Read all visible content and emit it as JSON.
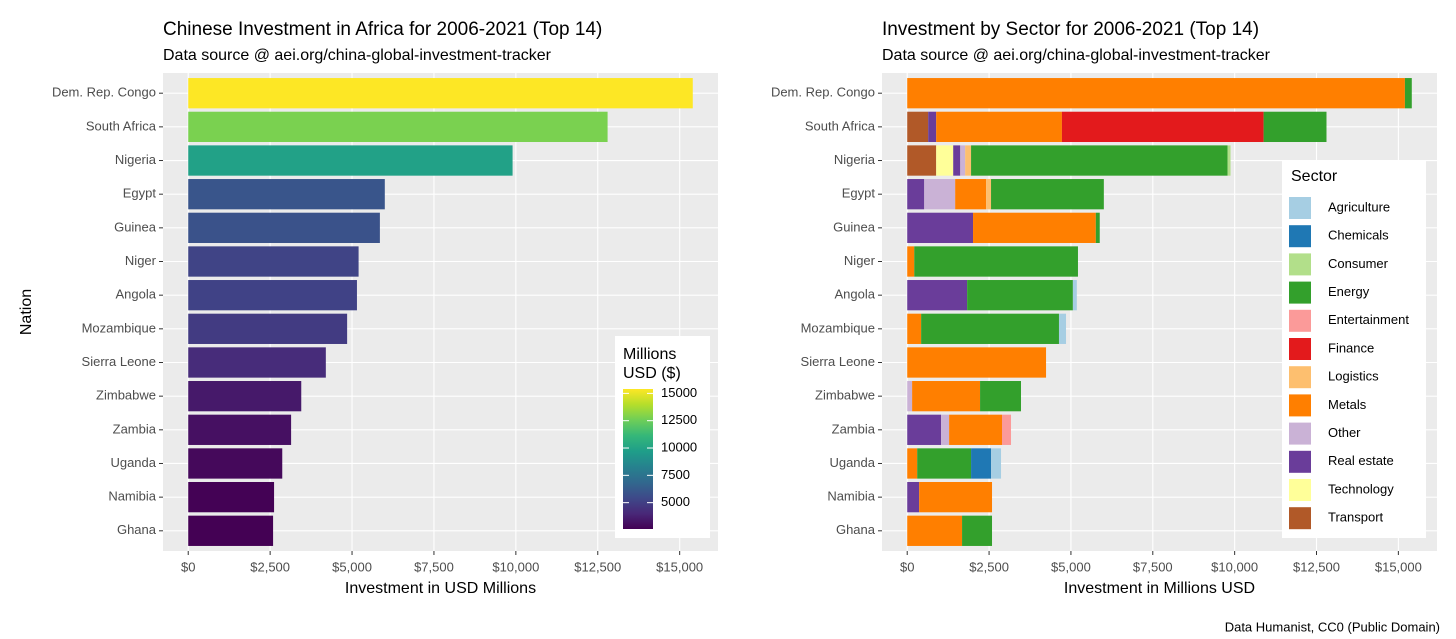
{
  "chart_data": [
    {
      "type": "bar",
      "orientation": "horizontal",
      "title": "Chinese Investment in Africa for 2006-2021 (Top 14)",
      "subtitle": "Data source @ aei.org/china-global-investment-tracker",
      "x_label": "Investment in USD Millions",
      "y_label": "Nation",
      "categories": [
        "Dem. Rep. Congo",
        "South Africa",
        "Nigeria",
        "Egypt",
        "Guinea",
        "Niger",
        "Angola",
        "Mozambique",
        "Sierra Leone",
        "Zimbabwe",
        "Zambia",
        "Uganda",
        "Namibia",
        "Ghana"
      ],
      "values": [
        15400,
        12800,
        9900,
        6000,
        5850,
        5200,
        5150,
        4850,
        4200,
        3450,
        3140,
        2870,
        2620,
        2590
      ],
      "colormap": [
        "#440154",
        "#482878",
        "#3e4989",
        "#31688e",
        "#26828e",
        "#1f9e89",
        "#35b779",
        "#6ece58",
        "#b5de2b",
        "#fde725"
      ],
      "legend_title": [
        "Millions",
        "USD ($)"
      ],
      "legend_ticks": [
        5000,
        7500,
        10000,
        12500,
        15000
      ],
      "xlim": [
        -770,
        16170
      ],
      "xticks": [
        {
          "value": 0,
          "label": "$0"
        },
        {
          "value": 2500,
          "label": "$2,500"
        },
        {
          "value": 5000,
          "label": "$5,000"
        },
        {
          "value": 7500,
          "label": "$7,500"
        },
        {
          "value": 10000,
          "label": "$10,000"
        },
        {
          "value": 12500,
          "label": "$12,500"
        },
        {
          "value": 15000,
          "label": "$15,000"
        }
      ],
      "grid": true
    },
    {
      "type": "stacked_bar",
      "orientation": "horizontal",
      "title": "Investment by Sector for 2006-2021 (Top 14)",
      "subtitle": "Data source @ aei.org/china-global-investment-tracker",
      "x_label": "Investment in Millions USD",
      "caption": "Data Humanist, CC0 (Public Domain)",
      "legend_title": "Sector",
      "categories": [
        "Dem. Rep. Congo",
        "South Africa",
        "Nigeria",
        "Egypt",
        "Guinea",
        "Niger",
        "Angola",
        "Mozambique",
        "Sierra Leone",
        "Zimbabwe",
        "Zambia",
        "Uganda",
        "Namibia",
        "Ghana"
      ],
      "series": [
        {
          "name": "Agriculture",
          "color": "#a6cee3",
          "values": [
            0,
            0,
            0,
            0,
            0,
            0,
            120,
            215,
            0,
            0,
            0,
            305,
            0,
            0
          ]
        },
        {
          "name": "Chemicals",
          "color": "#1f78b4",
          "values": [
            0,
            0,
            0,
            0,
            0,
            0,
            0,
            0,
            0,
            0,
            0,
            610,
            0,
            0
          ]
        },
        {
          "name": "Consumer",
          "color": "#b2df8a",
          "values": [
            0,
            0,
            90,
            0,
            0,
            0,
            0,
            0,
            0,
            0,
            0,
            0,
            0,
            0
          ]
        },
        {
          "name": "Energy",
          "color": "#33a02c",
          "values": [
            210,
            1920,
            7835,
            3445,
            120,
            5000,
            3230,
            4210,
            0,
            1250,
            0,
            1645,
            0,
            915
          ]
        },
        {
          "name": "Entertainment",
          "color": "#fb9a99",
          "values": [
            0,
            0,
            0,
            0,
            0,
            0,
            0,
            0,
            0,
            0,
            275,
            0,
            0,
            0
          ]
        },
        {
          "name": "Finance",
          "color": "#e31a1c",
          "values": [
            0,
            6160,
            0,
            0,
            0,
            0,
            0,
            0,
            0,
            0,
            0,
            0,
            0,
            0
          ]
        },
        {
          "name": "Logistics",
          "color": "#fdbf6f",
          "values": [
            0,
            0,
            180,
            150,
            0,
            0,
            0,
            0,
            0,
            0,
            0,
            0,
            0,
            0
          ]
        },
        {
          "name": "Metals",
          "color": "#ff7f00",
          "values": [
            15200,
            3840,
            0,
            945,
            3750,
            215,
            0,
            425,
            4240,
            2075,
            1615,
            305,
            2225,
            1675
          ]
        },
        {
          "name": "Other",
          "color": "#cab2d6",
          "values": [
            0,
            0,
            150,
            945,
            0,
            0,
            0,
            0,
            0,
            150,
            245,
            0,
            0,
            0
          ]
        },
        {
          "name": "Real estate",
          "color": "#6a3d9a",
          "values": [
            0,
            245,
            215,
            520,
            2010,
            0,
            1830,
            0,
            0,
            0,
            1035,
            0,
            365,
            0
          ]
        },
        {
          "name": "Technology",
          "color": "#ffff99",
          "values": [
            0,
            0,
            520,
            0,
            0,
            0,
            0,
            0,
            0,
            0,
            0,
            0,
            0,
            0
          ]
        },
        {
          "name": "Transport",
          "color": "#b15928",
          "values": [
            0,
            640,
            885,
            0,
            0,
            0,
            0,
            0,
            0,
            0,
            0,
            0,
            0,
            0
          ]
        }
      ],
      "xlim": [
        -770,
        16180
      ],
      "xticks": [
        {
          "value": 0,
          "label": "$0"
        },
        {
          "value": 2500,
          "label": "$2,500"
        },
        {
          "value": 5000,
          "label": "$5,000"
        },
        {
          "value": 7500,
          "label": "$7,500"
        },
        {
          "value": 10000,
          "label": "$10,000"
        },
        {
          "value": 12500,
          "label": "$12,500"
        },
        {
          "value": 15000,
          "label": "$15,000"
        }
      ],
      "grid": true
    }
  ]
}
